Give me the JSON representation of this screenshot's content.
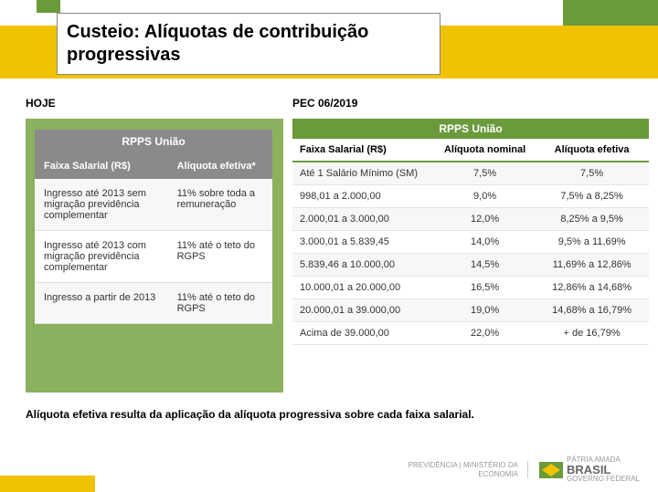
{
  "title": "Custeio: Alíquotas de contribuição progressivas",
  "labels": {
    "hoje": "HOJE",
    "pec": "PEC 06/2019"
  },
  "table_left": {
    "title": "RPPS União",
    "headers": {
      "c1": "Faixa Salarial (R$)",
      "c2": "Alíquota efetiva*"
    },
    "rows": [
      {
        "c1": "Ingresso até 2013 sem migração previdência complementar",
        "c2": "11% sobre toda a remuneração"
      },
      {
        "c1": "Ingresso até 2013 com migração previdência complementar",
        "c2": "11% até o teto do RGPS"
      },
      {
        "c1": "Ingresso a partir de 2013",
        "c2": "11% até o teto do RGPS"
      }
    ]
  },
  "table_right": {
    "title": "RPPS União",
    "headers": {
      "rc1": "Faixa Salarial (R$)",
      "rc2": "Alíquota nominal",
      "rc3": "Alíquota efetiva"
    },
    "rows": [
      {
        "rc1": "Até 1 Salário Mínimo (SM)",
        "rc2": "7,5%",
        "rc3": "7,5%"
      },
      {
        "rc1": "998,01 a 2.000,00",
        "rc2": "9,0%",
        "rc3": "7,5% a 8,25%"
      },
      {
        "rc1": "2.000,01 a 3.000,00",
        "rc2": "12,0%",
        "rc3": "8,25% a 9,5%"
      },
      {
        "rc1": "3.000,01 a 5.839,45",
        "rc2": "14,0%",
        "rc3": "9,5% a 11,69%"
      },
      {
        "rc1": "5.839,46 a 10.000,00",
        "rc2": "14,5%",
        "rc3": "11,69% a 12,86%"
      },
      {
        "rc1": "10.000,01 a 20.000,00",
        "rc2": "16,5%",
        "rc3": "12,86% a 14,68%"
      },
      {
        "rc1": "20.000,01 a 39.000,00",
        "rc2": "19,0%",
        "rc3": "14,68% a 16,79%"
      },
      {
        "rc1": "Acima de 39.000,00",
        "rc2": "22,0%",
        "rc3": "+ de 16,79%"
      }
    ]
  },
  "footnote": "Alíquota efetiva resulta da aplicação da alíquota progressiva sobre cada faixa salarial.",
  "footer": {
    "ministry_line1": "PREVIDÊNCIA",
    "ministry_line2": "MINISTÉRIO DA",
    "ministry_line3": "ECONOMIA",
    "brasil_top": "PÁTRIA AMADA",
    "brasil_main": "BRASIL",
    "brasil_sub": "GOVERNO FEDERAL"
  },
  "colors": {
    "yellow": "#f0c200",
    "green": "#6a9a3a",
    "green_light": "#8bb15e",
    "gray_header": "#8a8a8a"
  }
}
